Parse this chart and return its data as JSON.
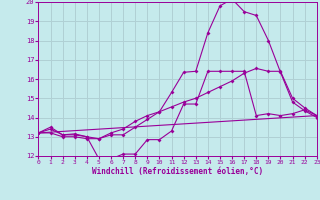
{
  "xlabel": "Windchill (Refroidissement éolien,°C)",
  "xlim": [
    0,
    23
  ],
  "ylim": [
    12,
    20
  ],
  "yticks": [
    12,
    13,
    14,
    15,
    16,
    17,
    18,
    19,
    20
  ],
  "xticks": [
    0,
    1,
    2,
    3,
    4,
    5,
    6,
    7,
    8,
    9,
    10,
    11,
    12,
    13,
    14,
    15,
    16,
    17,
    18,
    19,
    20,
    21,
    22,
    23
  ],
  "bg_color": "#c5eaec",
  "grid_color": "#b0d0d4",
  "line_color": "#990099",
  "line1_x": [
    0,
    1,
    2,
    3,
    4,
    5,
    6,
    7,
    8,
    9,
    10,
    11,
    12,
    13,
    14,
    15,
    16,
    17,
    18,
    19,
    20,
    21,
    22,
    23
  ],
  "line1_y": [
    13.2,
    13.5,
    13.1,
    13.15,
    13.0,
    11.85,
    11.85,
    12.1,
    12.1,
    12.85,
    12.85,
    13.3,
    14.7,
    14.7,
    16.4,
    16.4,
    16.4,
    16.4,
    14.1,
    14.2,
    14.1,
    14.2,
    14.4,
    14.1
  ],
  "line2_x": [
    0,
    1,
    2,
    3,
    4,
    5,
    6,
    7,
    8,
    9,
    10,
    11,
    12,
    13,
    14,
    15,
    16,
    17,
    18,
    19,
    20,
    21,
    22,
    23
  ],
  "line2_y": [
    13.2,
    13.4,
    13.1,
    13.1,
    13.0,
    12.9,
    13.2,
    13.4,
    13.8,
    14.1,
    14.3,
    14.55,
    14.8,
    15.0,
    15.3,
    15.6,
    15.9,
    16.3,
    16.55,
    16.4,
    16.4,
    15.0,
    14.5,
    14.1
  ],
  "line3_x": [
    0,
    1,
    2,
    3,
    4,
    5,
    6,
    7,
    8,
    9,
    10,
    11,
    12,
    13,
    14,
    15,
    16,
    17,
    18,
    19,
    20,
    21,
    22,
    23
  ],
  "line3_y": [
    13.2,
    13.2,
    13.0,
    13.0,
    12.9,
    12.9,
    13.1,
    13.1,
    13.5,
    13.9,
    14.3,
    15.3,
    16.35,
    16.4,
    18.4,
    19.8,
    20.15,
    19.5,
    19.3,
    18.0,
    16.35,
    14.8,
    14.35,
    14.0
  ],
  "line4_x": [
    0,
    23
  ],
  "line4_y": [
    13.2,
    14.1
  ],
  "markersize": 2.0
}
